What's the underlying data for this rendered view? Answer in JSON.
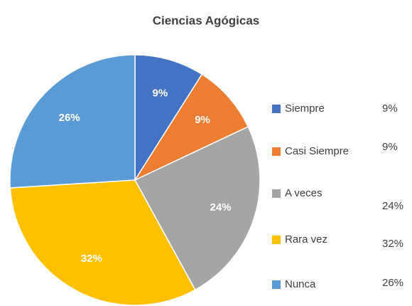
{
  "chart_data": {
    "type": "pie",
    "title": "Ciencias Agógicas",
    "categories": [
      "Siempre",
      "Casi Siempre",
      "A veces",
      "Rara vez",
      "Nunca"
    ],
    "values": [
      9,
      9,
      24,
      32,
      26
    ],
    "value_labels": [
      "9%",
      "9%",
      "24%",
      "32%",
      "26%"
    ],
    "colors": [
      "#4472c4",
      "#ed7d31",
      "#a5a5a5",
      "#ffc000",
      "#5b9bd5"
    ]
  }
}
